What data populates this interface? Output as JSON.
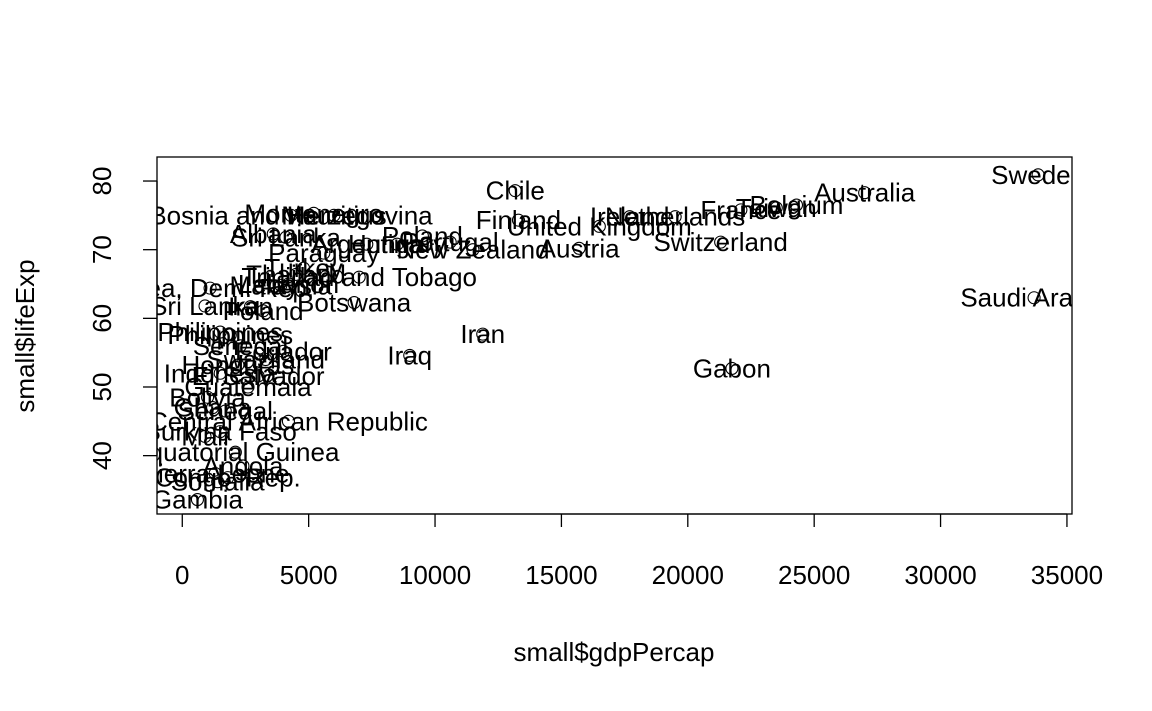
{
  "chart_data": {
    "type": "scatter",
    "xlabel": "small$gdpPercap",
    "ylabel": "small$lifeExp",
    "xlim": [
      -1000,
      35200
    ],
    "ylim": [
      31.5,
      83.5
    ],
    "x_ticks": [
      0,
      5000,
      10000,
      15000,
      20000,
      25000,
      30000,
      35000
    ],
    "y_ticks": [
      40,
      50,
      60,
      70,
      80
    ],
    "x_tick_labels": [
      "0",
      "5000",
      "10000",
      "15000",
      "20000",
      "25000",
      "30000",
      "35000"
    ],
    "y_tick_labels": [
      "40",
      "50",
      "60",
      "70",
      "80"
    ],
    "grid": false,
    "points": [
      {
        "x": 33860,
        "y": 80.9,
        "label": "Sweden"
      },
      {
        "x": 26997,
        "y": 78.3,
        "label": "Australia"
      },
      {
        "x": 24300,
        "y": 76.5,
        "label": "Belgium"
      },
      {
        "x": 23500,
        "y": 76.1,
        "label": "Taiwan"
      },
      {
        "x": 22100,
        "y": 75.8,
        "label": "France"
      },
      {
        "x": 19500,
        "y": 74.8,
        "label": "Netherlands"
      },
      {
        "x": 17700,
        "y": 74.8,
        "label": "Ireland"
      },
      {
        "x": 16500,
        "y": 73.4,
        "label": "United Kingdom"
      },
      {
        "x": 21300,
        "y": 71.1,
        "label": "Switzerland"
      },
      {
        "x": 15700,
        "y": 70.2,
        "label": "Austria"
      },
      {
        "x": 13171,
        "y": 78.6,
        "label": "Chile"
      },
      {
        "x": 13300,
        "y": 74.3,
        "label": "Finland"
      },
      {
        "x": 4300,
        "y": 75.0,
        "label": "Bosnia and Herzegovina"
      },
      {
        "x": 5200,
        "y": 75.3,
        "label": "Montenegro"
      },
      {
        "x": 6000,
        "y": 75.0,
        "label": "Mauritius"
      },
      {
        "x": 10600,
        "y": 71.1,
        "label": "Portugal"
      },
      {
        "x": 11500,
        "y": 70.0,
        "label": "New Zealand"
      },
      {
        "x": 3600,
        "y": 72.3,
        "label": "Albania"
      },
      {
        "x": 4100,
        "y": 71.8,
        "label": "Sri Lanka"
      },
      {
        "x": 9500,
        "y": 72.0,
        "label": "Poland"
      },
      {
        "x": 8500,
        "y": 70.8,
        "label": "Hungary"
      },
      {
        "x": 7300,
        "y": 70.8,
        "label": "Argentina"
      },
      {
        "x": 5600,
        "y": 69.5,
        "label": "Paraguay"
      },
      {
        "x": 7000,
        "y": 66.0,
        "label": "Trinidad and Tobago"
      },
      {
        "x": 4200,
        "y": 65.0,
        "label": "Lebanon"
      },
      {
        "x": 4500,
        "y": 66.4,
        "label": "Thailand"
      },
      {
        "x": 4800,
        "y": 67.3,
        "label": "Turkey"
      },
      {
        "x": 3900,
        "y": 64.8,
        "label": "Malaysia"
      },
      {
        "x": 1100,
        "y": 64.4,
        "label": "Korea, Dem. Rep."
      },
      {
        "x": 900,
        "y": 61.8,
        "label": "Sri Lanka"
      },
      {
        "x": 6800,
        "y": 62.3,
        "label": "Botswana"
      },
      {
        "x": 3200,
        "y": 61.1,
        "label": "Poland"
      },
      {
        "x": 2700,
        "y": 61.7,
        "label": "Iran"
      },
      {
        "x": 11888,
        "y": 57.7,
        "label": "Iran"
      },
      {
        "x": 9000,
        "y": 54.6,
        "label": "Iraq"
      },
      {
        "x": 21745,
        "y": 52.7,
        "label": "Gabon"
      },
      {
        "x": 33700,
        "y": 63.0,
        "label": "Saudi Arabia"
      },
      {
        "x": 1500,
        "y": 58.0,
        "label": "Philippines"
      },
      {
        "x": 1900,
        "y": 57.6,
        "label": "Philippines"
      },
      {
        "x": 2300,
        "y": 56.0,
        "label": "Senegal"
      },
      {
        "x": 4000,
        "y": 55.2,
        "label": "Ecuador"
      },
      {
        "x": 3300,
        "y": 54.0,
        "label": "Swaziland"
      },
      {
        "x": 2200,
        "y": 53.2,
        "label": "Honduras"
      },
      {
        "x": 1500,
        "y": 52.0,
        "label": "Indonesia"
      },
      {
        "x": 3000,
        "y": 51.6,
        "label": "El Salvador"
      },
      {
        "x": 2600,
        "y": 50.0,
        "label": "Guatemala"
      },
      {
        "x": 1000,
        "y": 48.5,
        "label": "Bolivia"
      },
      {
        "x": 1200,
        "y": 47.0,
        "label": "Ghana"
      },
      {
        "x": 1700,
        "y": 46.5,
        "label": "Senegal"
      },
      {
        "x": 4200,
        "y": 45.0,
        "label": "Central African Republic"
      },
      {
        "x": 1500,
        "y": 43.5,
        "label": "Burkina Faso"
      },
      {
        "x": 900,
        "y": 42.8,
        "label": "Mali"
      },
      {
        "x": 2100,
        "y": 40.5,
        "label": "Equatorial Guinea"
      },
      {
        "x": 2400,
        "y": 38.5,
        "label": "Angola"
      },
      {
        "x": 1300,
        "y": 37.4,
        "label": "Sierra Leone"
      },
      {
        "x": 1800,
        "y": 36.8,
        "label": "Congo, Rep."
      },
      {
        "x": 1400,
        "y": 36.2,
        "label": "Somalia"
      },
      {
        "x": 600,
        "y": 33.6,
        "label": "Gambia"
      }
    ]
  }
}
